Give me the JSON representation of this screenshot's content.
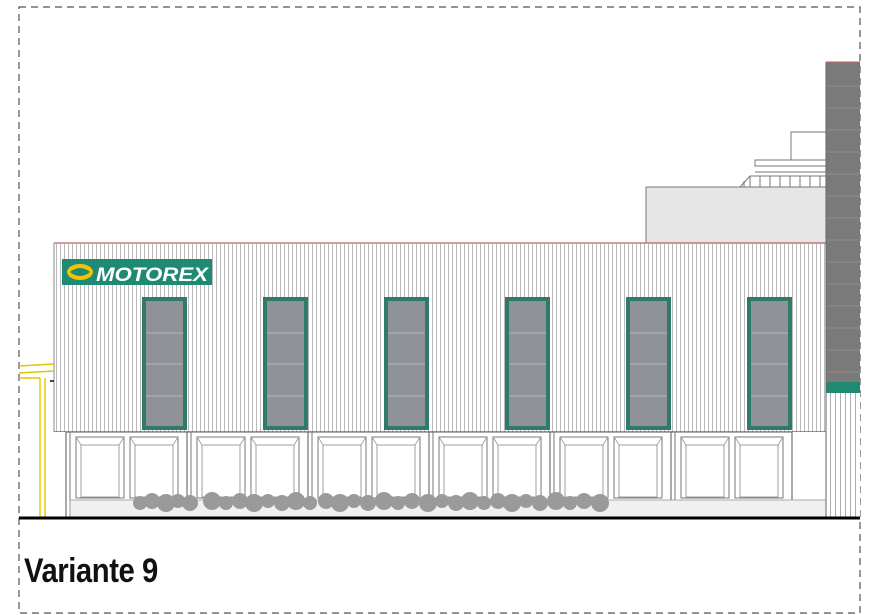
{
  "drawing": {
    "logo_text": "MOTOREX",
    "caption": "Variante 9",
    "window_count": 6,
    "garage_door_count": 12,
    "colors": {
      "frame_border": "#555555",
      "cladding_line": "#a9a9a9",
      "roof_line": "#c06060",
      "window_frame": "#2f7a6a",
      "window_glass": "#8f9296",
      "logo_bg": "#1f8a74",
      "logo_accent": "#f2c500",
      "tower": "#7a7a7a",
      "tower_band": "#1f8a74",
      "upper_block": "#e6e6e6",
      "annex": "#e3c400",
      "ground": "#000000",
      "shrubs": "#9a9a9a"
    }
  }
}
